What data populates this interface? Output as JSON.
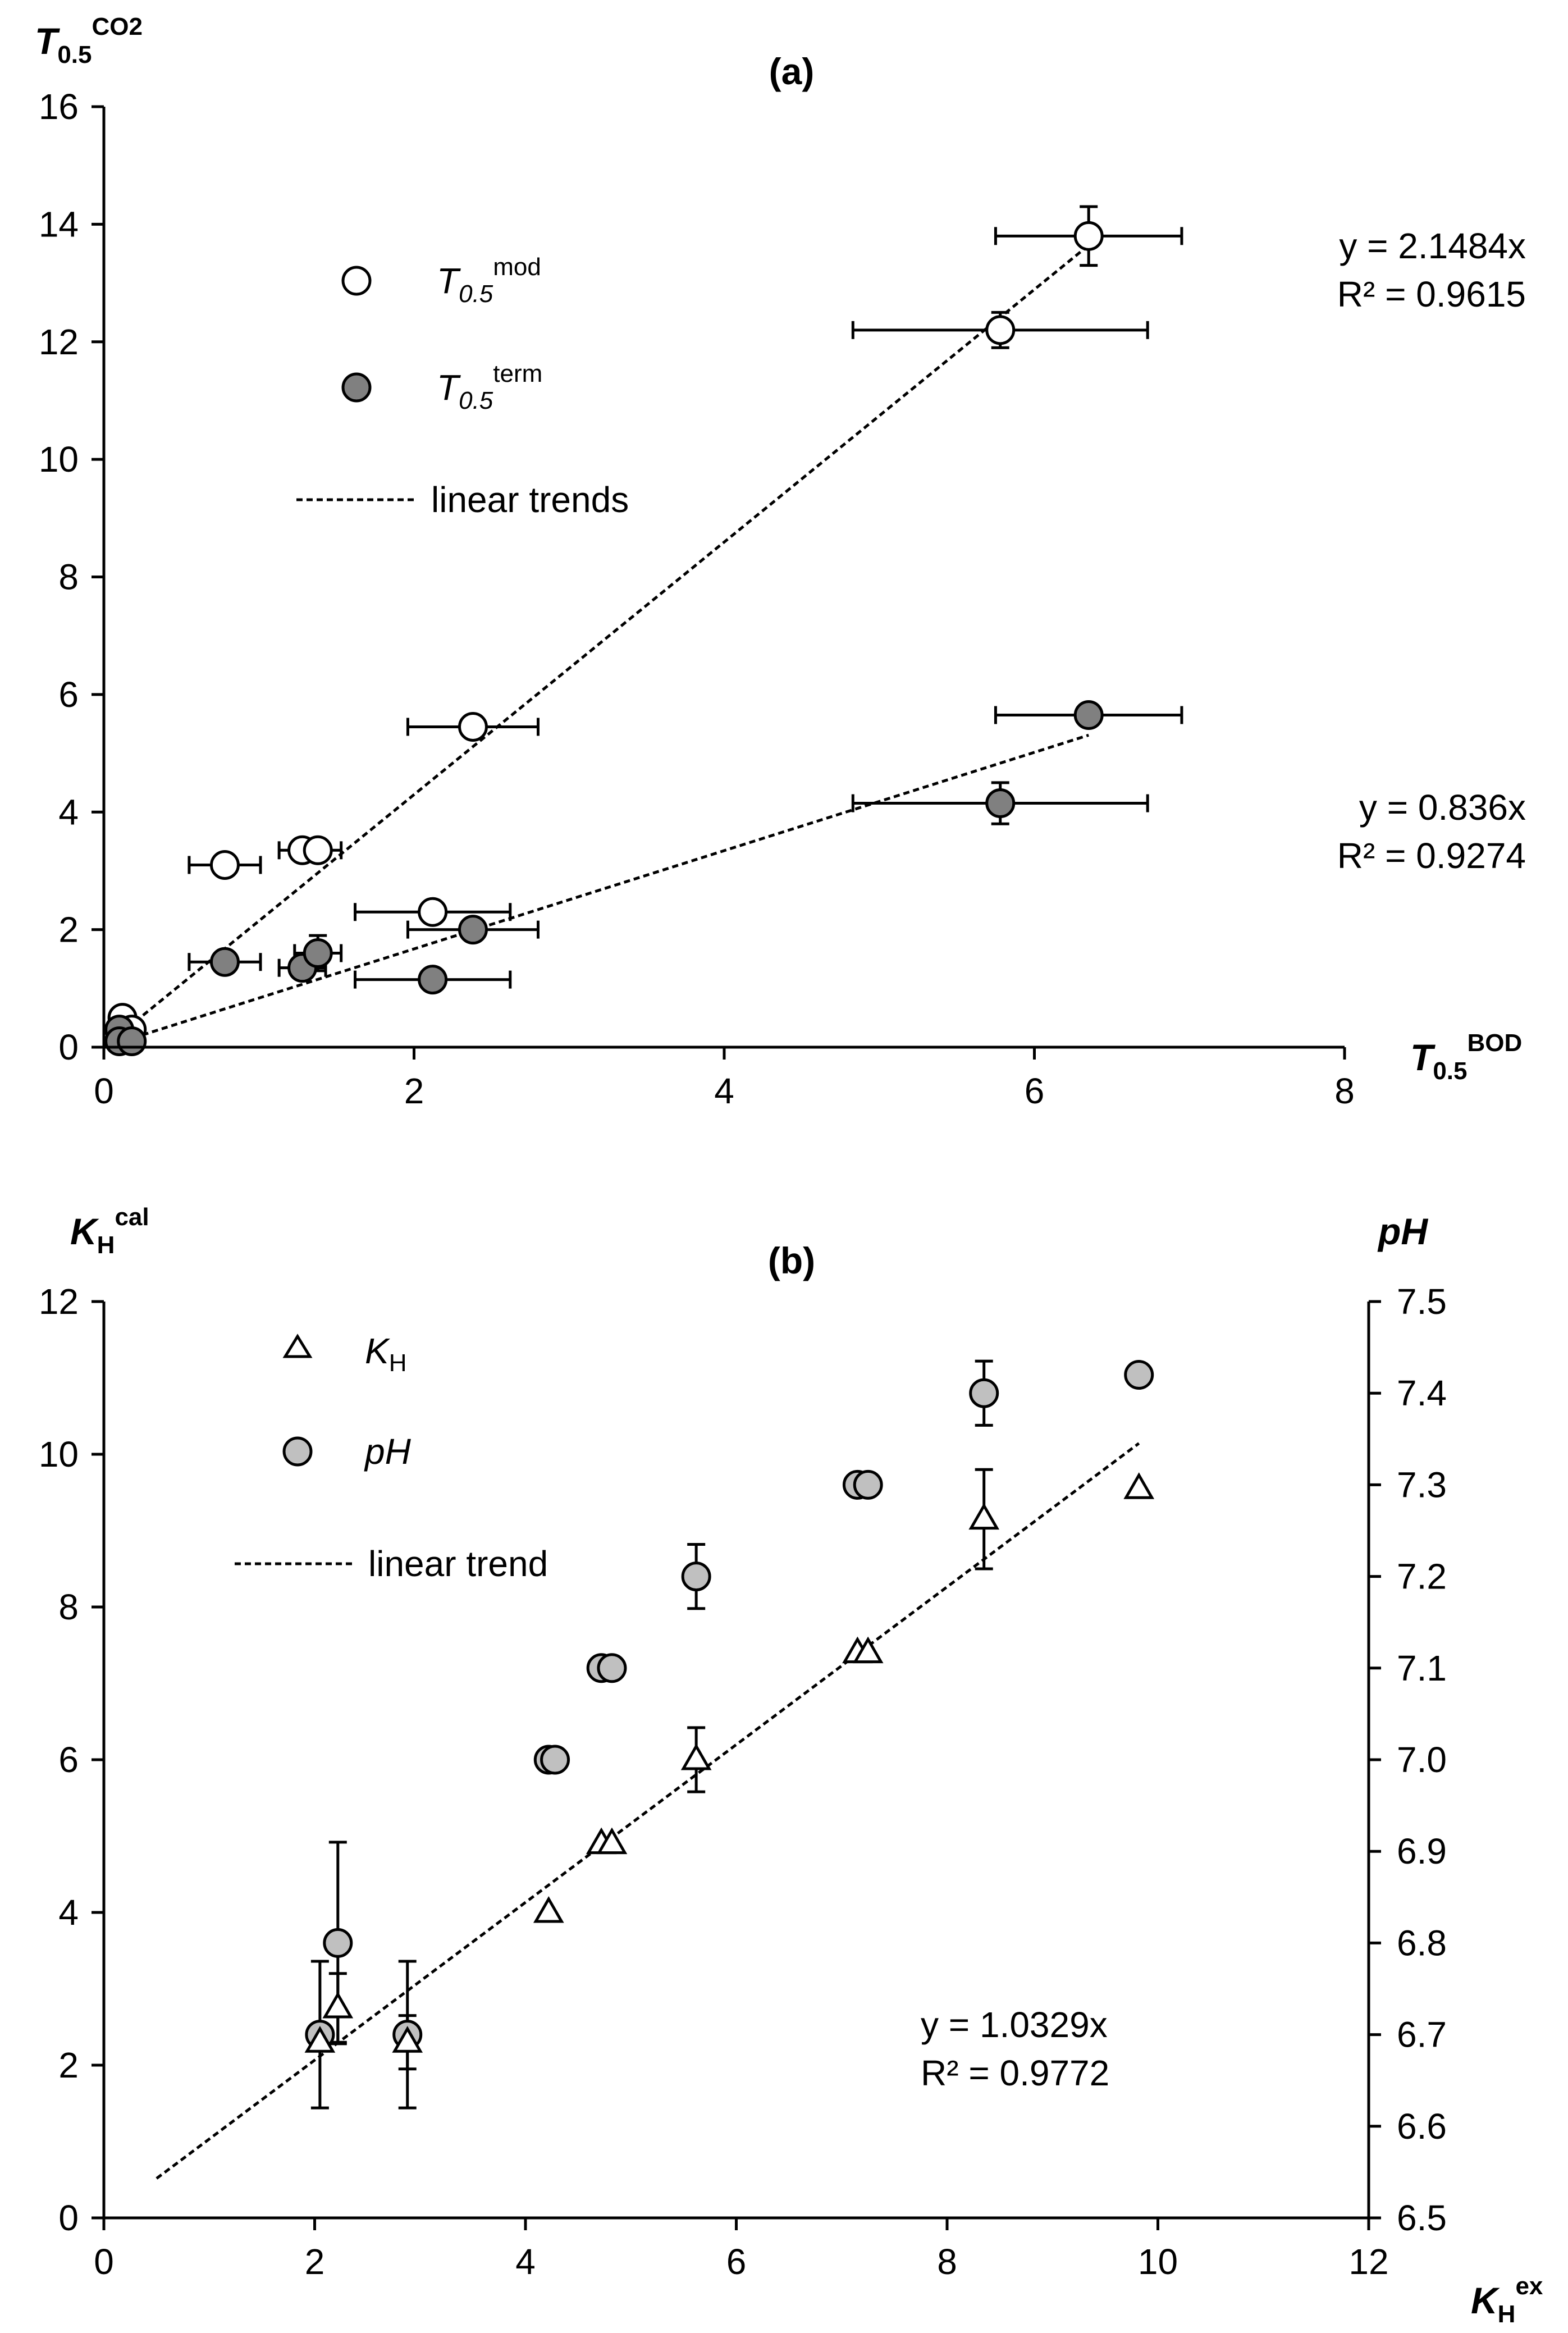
{
  "chart_data": [
    {
      "type": "scatter",
      "title": "(a)",
      "ylabel": {
        "main": "T",
        "sub": "0.5",
        "sup": "CO2"
      },
      "xlabel": {
        "main": "T",
        "sub": "0.5",
        "sup": "BOD"
      },
      "xlim": [
        0,
        8
      ],
      "ylim": [
        0,
        16
      ],
      "xticks": [
        "0",
        "2",
        "4",
        "6",
        "8"
      ],
      "yticks": [
        "0",
        "2",
        "4",
        "6",
        "8",
        "10",
        "12",
        "14",
        "16"
      ],
      "xtick_values": [
        0,
        2,
        4,
        6,
        8
      ],
      "ytick_values": [
        0,
        2,
        4,
        6,
        8,
        10,
        12,
        14,
        16
      ],
      "legend": {
        "mod": {
          "main": "T",
          "sub": "0.5",
          "sup": "mod",
          "marker": "open-circle"
        },
        "term": {
          "main": "T",
          "sub": "0.5",
          "sup": "term",
          "marker": "gray-circle"
        },
        "trend": "linear trends"
      },
      "series": [
        {
          "name": "mod",
          "fill": "#ffffff",
          "points": [
            {
              "x": 0.12,
              "y": 0.5
            },
            {
              "x": 0.18,
              "y": 0.3
            },
            {
              "x": 0.78,
              "y": 3.1,
              "xerr": 0.23
            },
            {
              "x": 1.28,
              "y": 3.35,
              "xerr": 0.15
            },
            {
              "x": 1.38,
              "y": 3.35,
              "xerr": 0.15
            },
            {
              "x": 2.38,
              "y": 5.45,
              "xerr": 0.42
            },
            {
              "x": 2.12,
              "y": 2.3,
              "xerr": 0.5
            },
            {
              "x": 5.78,
              "y": 12.2,
              "xerr": 0.95,
              "yerr": 0.3
            },
            {
              "x": 6.35,
              "y": 13.8,
              "xerr": 0.6,
              "yerr": 0.5
            }
          ],
          "trend": {
            "slope": 2.1484,
            "x_end": 6.35,
            "equation": "y = 2.1484x",
            "r2": "R² = 0.9615"
          }
        },
        {
          "name": "term",
          "fill": "#808080",
          "points": [
            {
              "x": 0.1,
              "y": 0.3
            },
            {
              "x": 0.1,
              "y": 0.1
            },
            {
              "x": 0.18,
              "y": 0.1
            },
            {
              "x": 0.78,
              "y": 1.45,
              "xerr": 0.23
            },
            {
              "x": 1.28,
              "y": 1.35,
              "xerr": 0.15
            },
            {
              "x": 1.38,
              "y": 1.6,
              "xerr": 0.15,
              "yerr": 0.3
            },
            {
              "x": 2.38,
              "y": 2.0,
              "xerr": 0.42
            },
            {
              "x": 2.12,
              "y": 1.15,
              "xerr": 0.5
            },
            {
              "x": 5.78,
              "y": 4.15,
              "xerr": 0.95,
              "yerr": 0.35
            },
            {
              "x": 6.35,
              "y": 5.65,
              "xerr": 0.6
            }
          ],
          "trend": {
            "slope": 0.836,
            "x_end": 6.35,
            "equation": "y = 0.836x",
            "r2": "R² = 0.9274"
          }
        }
      ]
    },
    {
      "type": "scatter",
      "title": "(b)",
      "ylabel": {
        "main": "K",
        "sub": "H",
        "sup": "cal"
      },
      "y2label": "pH",
      "xlabel": {
        "main": "K",
        "sub": "H",
        "sup": "ex"
      },
      "xlim": [
        0,
        12
      ],
      "ylim": [
        0,
        12
      ],
      "y2lim": [
        6.5,
        7.5
      ],
      "xticks": [
        "0",
        "2",
        "4",
        "6",
        "8",
        "10",
        "12"
      ],
      "yticks": [
        "0",
        "2",
        "4",
        "6",
        "8",
        "10",
        "12"
      ],
      "y2ticks": [
        "6.5",
        "6.6",
        "6.7",
        "6.8",
        "6.9",
        "7.0",
        "7.1",
        "7.2",
        "7.3",
        "7.4",
        "7.5"
      ],
      "xtick_values": [
        0,
        2,
        4,
        6,
        8,
        10,
        12
      ],
      "ytick_values": [
        0,
        2,
        4,
        6,
        8,
        10,
        12
      ],
      "y2tick_values": [
        6.5,
        6.6,
        6.7,
        6.8,
        6.9,
        7.0,
        7.1,
        7.2,
        7.3,
        7.4,
        7.5
      ],
      "legend": {
        "kh": {
          "main": "K",
          "sub": "H",
          "marker": "open-triangle"
        },
        "ph": {
          "text": "pH",
          "marker": "gray-circle"
        },
        "trend": "linear trend"
      },
      "series": [
        {
          "name": "KH",
          "axis": "left",
          "marker": "triangle",
          "points": [
            {
              "x": 2.05,
              "y": 2.3
            },
            {
              "x": 2.22,
              "y": 2.75,
              "yerr": 0.45
            },
            {
              "x": 2.88,
              "y": 2.3,
              "yerr": 0.35
            },
            {
              "x": 4.22,
              "y": 4.0
            },
            {
              "x": 4.72,
              "y": 4.9
            },
            {
              "x": 4.82,
              "y": 4.9
            },
            {
              "x": 5.62,
              "y": 6.0,
              "yerr": 0.42
            },
            {
              "x": 7.15,
              "y": 7.4
            },
            {
              "x": 7.25,
              "y": 7.4
            },
            {
              "x": 8.35,
              "y": 9.15,
              "yerr": 0.65
            },
            {
              "x": 9.82,
              "y": 9.55
            }
          ],
          "trend": {
            "slope": 1.0329,
            "x_start": 0.5,
            "x_end": 9.82,
            "equation": "y = 1.0329x",
            "r2": "R² = 0.9772"
          }
        },
        {
          "name": "pH",
          "axis": "right",
          "marker": "circle",
          "fill": "#c0c0c0",
          "points": [
            {
              "x": 2.05,
              "y": 6.7,
              "yerr": 0.08
            },
            {
              "x": 2.22,
              "y": 6.8,
              "yerr": 0.11
            },
            {
              "x": 2.88,
              "y": 6.7,
              "yerr": 0.08
            },
            {
              "x": 4.22,
              "y": 7.0
            },
            {
              "x": 4.28,
              "y": 7.0
            },
            {
              "x": 4.72,
              "y": 7.1
            },
            {
              "x": 4.82,
              "y": 7.1
            },
            {
              "x": 5.62,
              "y": 7.2,
              "yerr": 0.035
            },
            {
              "x": 7.15,
              "y": 7.3
            },
            {
              "x": 7.25,
              "y": 7.3
            },
            {
              "x": 8.35,
              "y": 7.4,
              "yerr": 0.035
            },
            {
              "x": 9.82,
              "y": 7.42
            }
          ]
        }
      ]
    }
  ]
}
